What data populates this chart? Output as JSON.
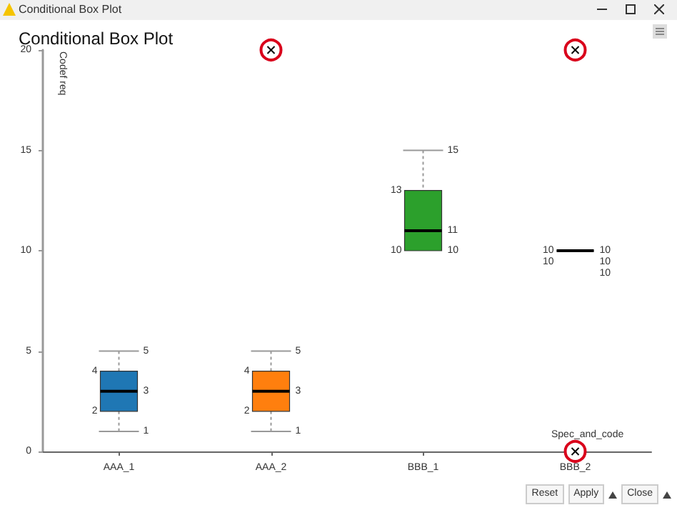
{
  "chart_data": {
    "type": "box",
    "title": "Conditional Box Plot",
    "xlabel": "Spec_and_code",
    "ylabel": "Codef req",
    "categories": [
      "AAA_1",
      "AAA_2",
      "BBB_1",
      "BBB_2"
    ],
    "boxes": [
      {
        "low": 1,
        "q1": 2,
        "median": 3,
        "q3": 4,
        "high": 5
      },
      {
        "low": 1,
        "q1": 2,
        "median": 3,
        "q3": 4,
        "high": 5,
        "outliers": [
          20
        ]
      },
      {
        "low": 10,
        "q1": 10,
        "median": 11,
        "q3": 13,
        "high": 15
      },
      {
        "low": 10,
        "q1": 10,
        "median": 10,
        "q3": 10,
        "high": 10,
        "outliers": [
          20,
          0
        ]
      }
    ],
    "colors": [
      "#1f77b4",
      "#ff7f0e",
      "#2ca02c",
      "#000000"
    ],
    "ylim": [
      0,
      20
    ],
    "yticks": [
      0,
      5,
      10,
      15,
      20
    ],
    "annotations": [
      "Conditional Box Plot",
      "Reset",
      "Apply",
      "Close",
      {
        "text": "4",
        "x": "AAA_1",
        "y": 4
      },
      {
        "text": "2",
        "x": "AAA_1",
        "y": 2
      },
      {
        "text": "5",
        "x": "AAA_1",
        "y": 5
      },
      {
        "text": "3",
        "x": "AAA_1",
        "y": 3
      },
      {
        "text": "1",
        "x": "AAA_1",
        "y": 1
      },
      {
        "text": "4",
        "x": "AAA_2",
        "y": 4
      },
      {
        "text": "2",
        "x": "AAA_2",
        "y": 2
      },
      {
        "text": "5",
        "x": "AAA_2",
        "y": 5
      },
      {
        "text": "3",
        "x": "AAA_2",
        "y": 3
      },
      {
        "text": "1",
        "x": "AAA_2",
        "y": 1
      },
      {
        "text": "13",
        "x": "BBB_1",
        "y": 13
      },
      {
        "text": "10",
        "x": "BBB_1",
        "y": 10
      },
      {
        "text": "15",
        "x": "BBB_1",
        "y": 15
      },
      {
        "text": "11",
        "x": "BBB_1",
        "y": 11
      },
      {
        "text": "10",
        "x": "BBB_1",
        "y": 10
      },
      {
        "text": "10",
        "x": "BBB_2",
        "y": 10
      },
      {
        "text": "10",
        "x": "BBB_2",
        "y": 10
      },
      {
        "text": "10",
        "x": "BBB_2",
        "y": 10
      },
      {
        "text": "10",
        "x": "BBB_2",
        "y": 10
      },
      {
        "text": "10",
        "x": "BBB_2",
        "y": 10
      }
    ]
  }
}
